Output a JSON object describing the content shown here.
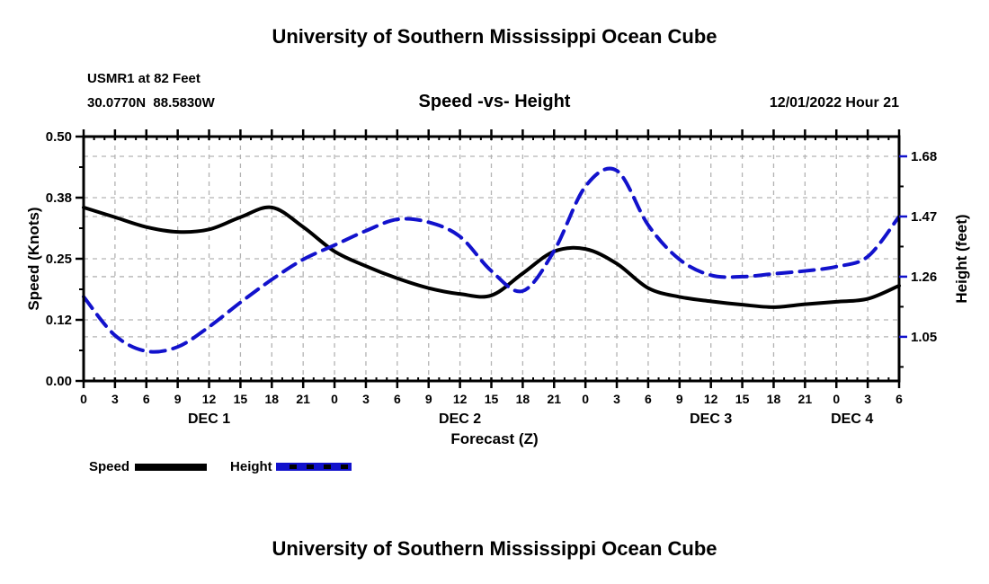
{
  "header": {
    "title_top": "University of Southern Mississippi Ocean Cube",
    "station_line1": "USMR1 at 82 Feet",
    "station_line2": "30.0770N  88.5830W",
    "plot_title": "Speed -vs- Height",
    "datetime": "12/01/2022 Hour 21"
  },
  "footer": {
    "title_bottom": "University of Southern Mississippi Ocean Cube"
  },
  "legend": {
    "speed_label": "Speed",
    "height_label": "Height"
  },
  "colors": {
    "grid": "#b3b3b3",
    "axis": "#000000",
    "speed": "#000000",
    "height": "#1212cc"
  },
  "chart_data": {
    "type": "line",
    "title": "Speed -vs- Height",
    "xlabel": "Forecast (Z)",
    "hours_total": 78,
    "x_hours": [
      0,
      3,
      6,
      9,
      12,
      15,
      18,
      21,
      24,
      27,
      30,
      33,
      36,
      39,
      42,
      45,
      48,
      51,
      54,
      57,
      60,
      63,
      66,
      69,
      72,
      75,
      78
    ],
    "x_tick_labels": [
      "0",
      "3",
      "6",
      "9",
      "12",
      "15",
      "18",
      "21",
      "0",
      "3",
      "6",
      "9",
      "12",
      "15",
      "18",
      "21",
      "0",
      "3",
      "6",
      "9",
      "12",
      "15",
      "18",
      "21",
      "0",
      "3",
      "6"
    ],
    "x_minor_step": 1,
    "day_labels": [
      {
        "label": "DEC 1",
        "hour": 12
      },
      {
        "label": "DEC 2",
        "hour": 36
      },
      {
        "label": "DEC 3",
        "hour": 60
      },
      {
        "label": "DEC 4",
        "hour": 73.5
      }
    ],
    "left_axis": {
      "label": "Speed (Knots)",
      "range": [
        0,
        0.5
      ],
      "ticks": [
        {
          "value": 0.5,
          "label": "0.50"
        },
        {
          "value": 0.375,
          "label": "0.38"
        },
        {
          "value": 0.25,
          "label": "0.25"
        },
        {
          "value": 0.125,
          "label": "0.12"
        },
        {
          "value": 0.0,
          "label": "0.00"
        }
      ],
      "minor_ticks": [
        0.0625,
        0.1875,
        0.3125,
        0.4375
      ]
    },
    "right_axis": {
      "label": "Height (feet)",
      "range": [
        0.896,
        1.749
      ],
      "ticks": [
        {
          "value": 1.68,
          "label": "1.68"
        },
        {
          "value": 1.47,
          "label": "1.47"
        },
        {
          "value": 1.26,
          "label": "1.26"
        },
        {
          "value": 1.05,
          "label": "1.05"
        }
      ],
      "minor_ticks": [
        0.945,
        1.155,
        1.365,
        1.575
      ]
    },
    "series": [
      {
        "name": "Speed",
        "axis": "left",
        "unit": "Knots",
        "color": "#000000",
        "style": "solid",
        "values": [
          0.355,
          0.335,
          0.315,
          0.305,
          0.31,
          0.335,
          0.355,
          0.315,
          0.265,
          0.235,
          0.21,
          0.19,
          0.178,
          0.175,
          0.22,
          0.265,
          0.27,
          0.24,
          0.19,
          0.172,
          0.163,
          0.156,
          0.151,
          0.157,
          0.162,
          0.168,
          0.195
        ]
      },
      {
        "name": "Height",
        "axis": "right",
        "unit": "feet",
        "color": "#1212cc",
        "style": "dashed",
        "values": [
          1.19,
          1.055,
          1.0,
          1.015,
          1.085,
          1.17,
          1.25,
          1.32,
          1.37,
          1.42,
          1.46,
          1.45,
          1.4,
          1.28,
          1.21,
          1.35,
          1.575,
          1.63,
          1.44,
          1.32,
          1.265,
          1.26,
          1.27,
          1.28,
          1.295,
          1.33,
          1.47
        ]
      }
    ]
  }
}
